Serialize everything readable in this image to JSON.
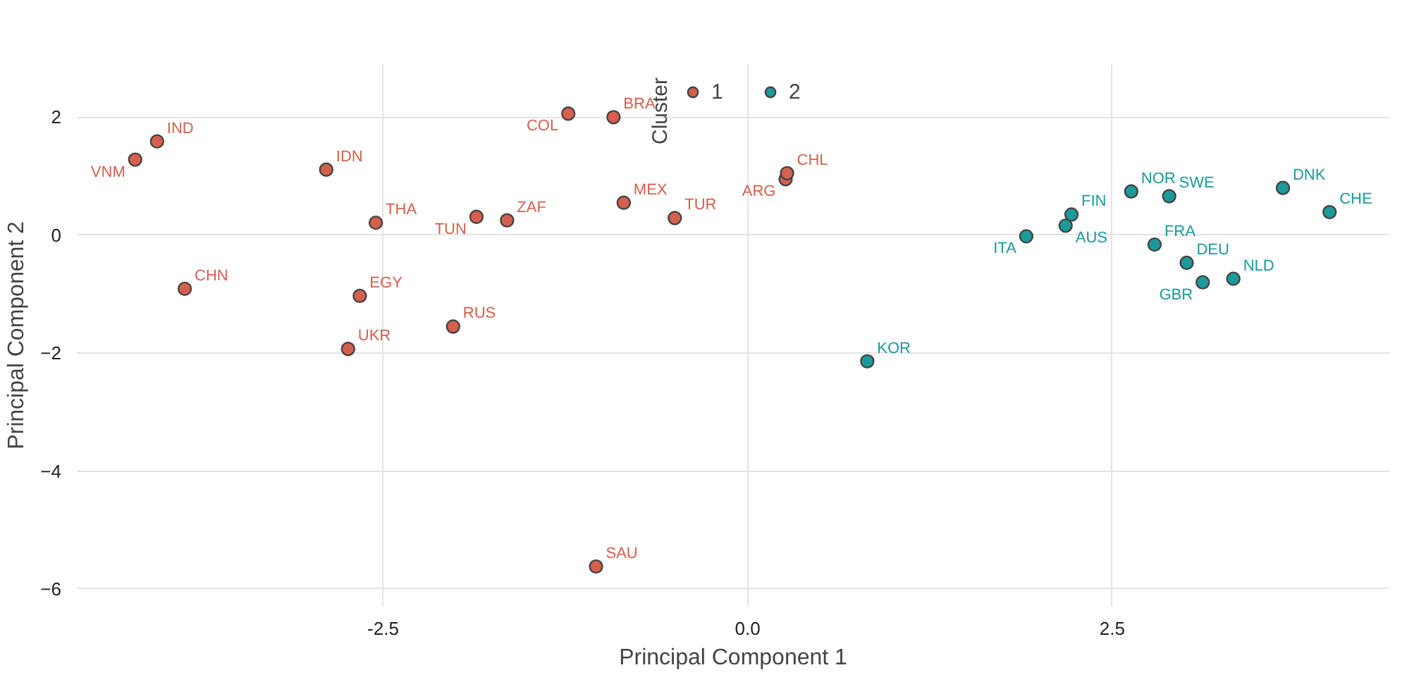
{
  "chart_data": {
    "type": "scatter",
    "xlabel": "Principal Component 1",
    "ylabel": "Principal Component 2",
    "legend_title": "Cluster",
    "legend": "top",
    "xlim": [
      -4.6,
      4.4
    ],
    "ylim": [
      -6.3,
      2.9
    ],
    "xticks": [
      {
        "value": -2.5,
        "label": "-2.5"
      },
      {
        "value": 0,
        "label": "0.0"
      },
      {
        "value": 2.5,
        "label": "2.5"
      }
    ],
    "yticks": [
      -6,
      -4,
      -2,
      0,
      2
    ],
    "grid": true,
    "marker": "circle",
    "series": [
      {
        "name": "1",
        "color": "#d6604d",
        "x": [
          -4.2,
          -4.05,
          -2.89,
          -2.55,
          -1.86,
          -1.65,
          -1.23,
          -0.92,
          -0.85,
          -3.86,
          -2.66,
          -2.02,
          -2.74,
          -0.5,
          0.26,
          0.27,
          -1.04
        ],
        "values": [
          1.28,
          1.59,
          1.11,
          0.21,
          0.31,
          0.25,
          2.06,
          2.0,
          0.55,
          -0.91,
          -1.03,
          -1.55,
          -1.93,
          0.29,
          0.95,
          1.05,
          -5.62
        ]
      },
      {
        "name": "2",
        "color": "#1b9a9c",
        "x": [
          0.82,
          1.91,
          2.18,
          2.22,
          2.63,
          2.89,
          2.79,
          3.01,
          3.12,
          3.33,
          3.67,
          3.99
        ],
        "values": [
          -2.14,
          -0.02,
          0.16,
          0.35,
          0.74,
          0.66,
          -0.16,
          -0.47,
          -0.8,
          -0.74,
          0.8,
          0.39
        ]
      }
    ],
    "annotations": [
      {
        "text": "VNM",
        "x": -4.2,
        "y": 1.28
      },
      {
        "text": "IND",
        "x": -4.05,
        "y": 1.59
      },
      {
        "text": "IDN",
        "x": -2.89,
        "y": 1.11
      },
      {
        "text": "THA",
        "x": -2.55,
        "y": 0.21
      },
      {
        "text": "TUN",
        "x": -1.86,
        "y": 0.31
      },
      {
        "text": "ZAF",
        "x": -1.65,
        "y": 0.25
      },
      {
        "text": "COL",
        "x": -1.23,
        "y": 2.06
      },
      {
        "text": "BRA",
        "x": -0.92,
        "y": 2.0
      },
      {
        "text": "MEX",
        "x": -0.85,
        "y": 0.55
      },
      {
        "text": "CHN",
        "x": -3.86,
        "y": -0.91
      },
      {
        "text": "EGY",
        "x": -2.66,
        "y": -1.03
      },
      {
        "text": "RUS",
        "x": -2.02,
        "y": -1.55
      },
      {
        "text": "UKR",
        "x": -2.74,
        "y": -1.93
      },
      {
        "text": "TUR",
        "x": -0.5,
        "y": 0.29
      },
      {
        "text": "ARG",
        "x": 0.26,
        "y": 0.95
      },
      {
        "text": "CHL",
        "x": 0.27,
        "y": 1.05
      },
      {
        "text": "SAU",
        "x": -1.04,
        "y": -5.62
      },
      {
        "text": "KOR",
        "x": 0.82,
        "y": -2.14
      },
      {
        "text": "ITA",
        "x": 1.91,
        "y": -0.02
      },
      {
        "text": "AUS",
        "x": 2.18,
        "y": 0.16
      },
      {
        "text": "FIN",
        "x": 2.22,
        "y": 0.35
      },
      {
        "text": "NOR",
        "x": 2.63,
        "y": 0.74
      },
      {
        "text": "SWE",
        "x": 2.89,
        "y": 0.66
      },
      {
        "text": "FRA",
        "x": 2.79,
        "y": -0.16
      },
      {
        "text": "DEU",
        "x": 3.01,
        "y": -0.47
      },
      {
        "text": "GBR",
        "x": 3.12,
        "y": -0.8
      },
      {
        "text": "NLD",
        "x": 3.33,
        "y": -0.74
      },
      {
        "text": "DNK",
        "x": 3.67,
        "y": 0.8
      },
      {
        "text": "CHE",
        "x": 3.99,
        "y": 0.39
      }
    ]
  }
}
